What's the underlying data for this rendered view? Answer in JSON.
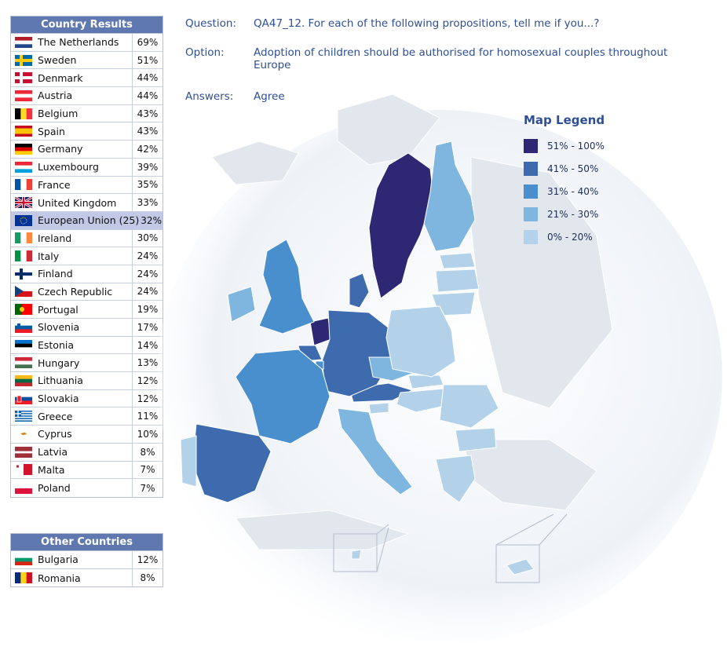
{
  "country_results": {
    "title": "Country Results",
    "rows": [
      {
        "name": "The Netherlands",
        "value": "69%",
        "flag": "netherlands-flag"
      },
      {
        "name": "Sweden",
        "value": "51%",
        "flag": "sweden-flag"
      },
      {
        "name": "Denmark",
        "value": "44%",
        "flag": "denmark-flag"
      },
      {
        "name": "Austria",
        "value": "44%",
        "flag": "austria-flag"
      },
      {
        "name": "Belgium",
        "value": "43%",
        "flag": "belgium-flag"
      },
      {
        "name": "Spain",
        "value": "43%",
        "flag": "spain-flag"
      },
      {
        "name": "Germany",
        "value": "42%",
        "flag": "germany-flag"
      },
      {
        "name": "Luxembourg",
        "value": "39%",
        "flag": "luxembourg-flag"
      },
      {
        "name": "France",
        "value": "35%",
        "flag": "france-flag"
      },
      {
        "name": "United Kingdom",
        "value": "33%",
        "flag": "united-kingdom-flag"
      },
      {
        "name": "European Union (25)",
        "value": "32%",
        "flag": "european-union-flag",
        "highlight": true
      },
      {
        "name": "Ireland",
        "value": "30%",
        "flag": "ireland-flag"
      },
      {
        "name": "Italy",
        "value": "24%",
        "flag": "italy-flag"
      },
      {
        "name": "Finland",
        "value": "24%",
        "flag": "finland-flag"
      },
      {
        "name": "Czech Republic",
        "value": "24%",
        "flag": "czech-republic-flag"
      },
      {
        "name": "Portugal",
        "value": "19%",
        "flag": "portugal-flag"
      },
      {
        "name": "Slovenia",
        "value": "17%",
        "flag": "slovenia-flag"
      },
      {
        "name": "Estonia",
        "value": "14%",
        "flag": "estonia-flag"
      },
      {
        "name": "Hungary",
        "value": "13%",
        "flag": "hungary-flag"
      },
      {
        "name": "Lithuania",
        "value": "12%",
        "flag": "lithuania-flag"
      },
      {
        "name": "Slovakia",
        "value": "12%",
        "flag": "slovakia-flag"
      },
      {
        "name": "Greece",
        "value": "11%",
        "flag": "greece-flag"
      },
      {
        "name": "Cyprus",
        "value": "10%",
        "flag": "cyprus-flag"
      },
      {
        "name": "Latvia",
        "value": "8%",
        "flag": "latvia-flag"
      },
      {
        "name": "Malta",
        "value": "7%",
        "flag": "malta-flag"
      },
      {
        "name": "Poland",
        "value": "7%",
        "flag": "poland-flag"
      }
    ]
  },
  "other_countries": {
    "title": "Other Countries",
    "rows": [
      {
        "name": "Bulgaria",
        "value": "12%",
        "flag": "bulgaria-flag"
      },
      {
        "name": "Romania",
        "value": "8%",
        "flag": "romania-flag"
      }
    ]
  },
  "question": {
    "question_label": "Question:",
    "question_text": "QA47_12. For each of the following propositions, tell me if you...?",
    "option_label": "Option:",
    "option_text": "Adoption of children should be authorised for homosexual couples throughout Europe",
    "answers_label": "Answers:",
    "answers_text": "Agree"
  },
  "legend": {
    "title": "Map Legend",
    "items": [
      {
        "label": "51% - 100%",
        "color": "#2e2774"
      },
      {
        "label": "41% - 50%",
        "color": "#3e6aae"
      },
      {
        "label": "31% - 40%",
        "color": "#4a8fcd"
      },
      {
        "label": "21% - 30%",
        "color": "#7eb6e0"
      },
      {
        "label": "0% - 20%",
        "color": "#b3d2ea"
      }
    ]
  },
  "map": {
    "ocean_color": "#e9eef5",
    "background_land_color": "#e2e7ee",
    "regions": [
      {
        "id": "netherlands",
        "color": "#2e2774"
      },
      {
        "id": "sweden",
        "color": "#2e2774"
      },
      {
        "id": "denmark",
        "color": "#3e6aae"
      },
      {
        "id": "austria",
        "color": "#3e6aae"
      },
      {
        "id": "belgium",
        "color": "#3e6aae"
      },
      {
        "id": "spain",
        "color": "#3e6aae"
      },
      {
        "id": "germany",
        "color": "#3e6aae"
      },
      {
        "id": "luxembourg",
        "color": "#4a8fcd"
      },
      {
        "id": "france",
        "color": "#4a8fcd"
      },
      {
        "id": "united-kingdom",
        "color": "#4a8fcd"
      },
      {
        "id": "ireland",
        "color": "#7eb6e0"
      },
      {
        "id": "italy",
        "color": "#7eb6e0"
      },
      {
        "id": "finland",
        "color": "#7eb6e0"
      },
      {
        "id": "czech-republic",
        "color": "#7eb6e0"
      },
      {
        "id": "portugal",
        "color": "#b3d2ea"
      },
      {
        "id": "slovenia",
        "color": "#b3d2ea"
      },
      {
        "id": "estonia",
        "color": "#b3d2ea"
      },
      {
        "id": "hungary",
        "color": "#b3d2ea"
      },
      {
        "id": "lithuania",
        "color": "#b3d2ea"
      },
      {
        "id": "slovakia",
        "color": "#b3d2ea"
      },
      {
        "id": "greece",
        "color": "#b3d2ea"
      },
      {
        "id": "cyprus",
        "color": "#b3d2ea"
      },
      {
        "id": "latvia",
        "color": "#b3d2ea"
      },
      {
        "id": "malta",
        "color": "#b3d2ea"
      },
      {
        "id": "poland",
        "color": "#b3d2ea"
      },
      {
        "id": "bulgaria",
        "color": "#b3d2ea"
      },
      {
        "id": "romania",
        "color": "#b3d2ea"
      }
    ]
  }
}
